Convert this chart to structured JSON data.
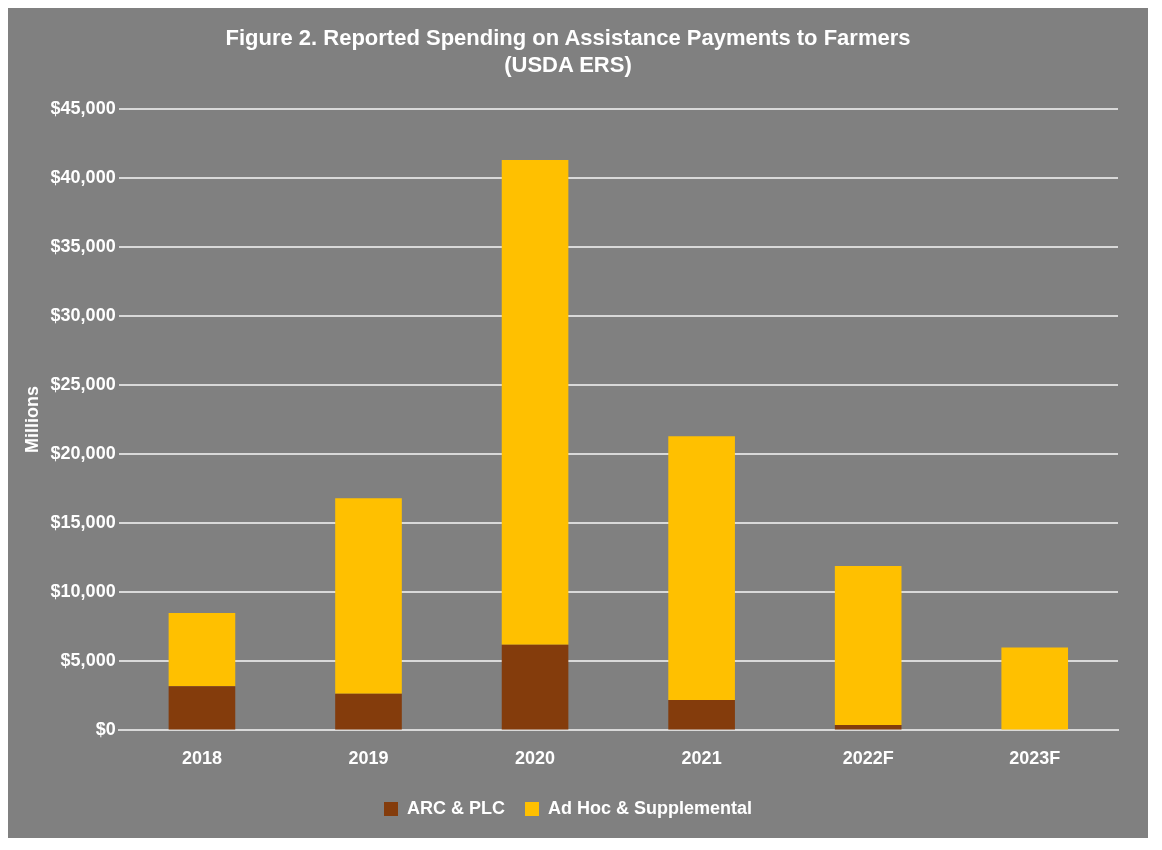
{
  "chart_data": {
    "type": "bar",
    "title": [
      "Figure 2. Reported Spending on Assistance Payments to Farmers",
      "(USDA ERS)"
    ],
    "ylabel": "Millions",
    "categories": [
      "2018",
      "2019",
      "2020",
      "2021",
      "2022F",
      "2023F"
    ],
    "series": [
      {
        "name": "ARC & PLC",
        "color": "#843c0c",
        "values": [
          3200,
          2650,
          6200,
          2200,
          400,
          0
        ]
      },
      {
        "name": "Ad Hoc & Supplemental",
        "color": "#ffc000",
        "values": [
          5300,
          14150,
          35100,
          19100,
          11500,
          6000
        ]
      }
    ],
    "stacked": true,
    "ylim": [
      0,
      45000
    ],
    "yticks": [
      {
        "value": 0,
        "label": "$0"
      },
      {
        "value": 5000,
        "label": "$5,000"
      },
      {
        "value": 10000,
        "label": "$10,000"
      },
      {
        "value": 15000,
        "label": "$15,000"
      },
      {
        "value": 20000,
        "label": "$20,000"
      },
      {
        "value": 25000,
        "label": "$25,000"
      },
      {
        "value": 30000,
        "label": "$30,000"
      },
      {
        "value": 35000,
        "label": "$35,000"
      },
      {
        "value": 40000,
        "label": "$40,000"
      },
      {
        "value": 45000,
        "label": "$45,000"
      }
    ],
    "grid": "y",
    "legend": "bottom"
  }
}
